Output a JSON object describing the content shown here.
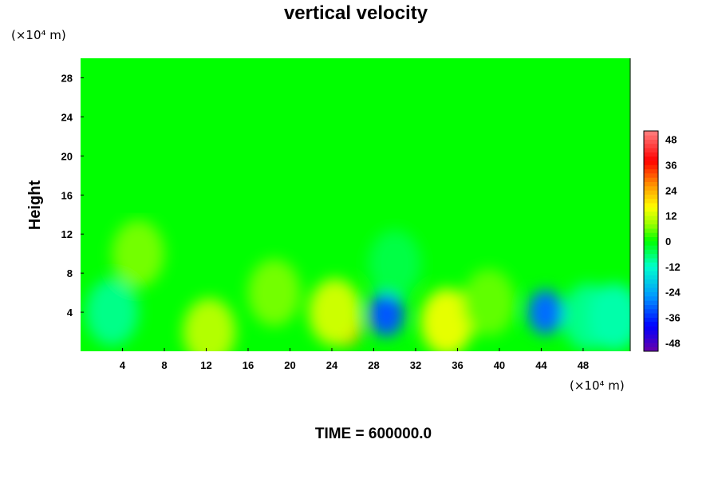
{
  "chart_data": {
    "type": "heatmap",
    "title": "vertical velocity",
    "ylabel": "Height",
    "xlabel": "",
    "x_unit": "(×10⁴ m)",
    "y_unit": "(×10⁴ m)",
    "xlim": [
      0,
      52.5
    ],
    "ylim": [
      0,
      30
    ],
    "x_ticks": [
      4,
      8,
      12,
      16,
      20,
      24,
      28,
      32,
      36,
      40,
      44,
      48
    ],
    "y_ticks": [
      4,
      8,
      12,
      16,
      20,
      24,
      28
    ],
    "x_tick_labels": [
      "4",
      "8",
      "12",
      "16",
      "20",
      "24",
      "28",
      "32",
      "36",
      "40",
      "44",
      "48"
    ],
    "y_tick_labels": [
      "4",
      "8",
      "12",
      "16",
      "20",
      "24",
      "28"
    ],
    "colorbar": {
      "range": [
        -52,
        52
      ],
      "tick_values": [
        48,
        36,
        24,
        12,
        0,
        -12,
        -24,
        -36,
        -48
      ],
      "tick_labels": [
        "48",
        "36",
        "24",
        "12",
        "0",
        "-12",
        "-24",
        "-36",
        "-48"
      ],
      "colors": {
        "-52": "#6a00a8",
        "-40": "#0000ff",
        "-26": "#0099ff",
        "-12": "#00ffcc",
        "0": "#00ff00",
        "8": "#99ff00",
        "16": "#ffff00",
        "26": "#ff9900",
        "38": "#ff0000",
        "52": "#ff8080"
      }
    },
    "features": [
      {
        "x": 25.2,
        "y": 2.8,
        "value": 26
      },
      {
        "x": 24.3,
        "y": 4.0,
        "value": 12
      },
      {
        "x": 29.2,
        "y": 3.8,
        "value": -32
      },
      {
        "x": 44.4,
        "y": 4.0,
        "value": -30
      },
      {
        "x": 35.0,
        "y": 3.0,
        "value": 14
      },
      {
        "x": 12.3,
        "y": 2.0,
        "value": 10
      },
      {
        "x": 3.0,
        "y": 4.0,
        "value": -8
      },
      {
        "x": 18.5,
        "y": 6.0,
        "value": 6
      },
      {
        "x": 39.0,
        "y": 5.0,
        "value": 5
      },
      {
        "x": 48.5,
        "y": 3.5,
        "value": -8
      },
      {
        "x": 51.0,
        "y": 3.5,
        "value": -10
      },
      {
        "x": 5.5,
        "y": 10.0,
        "value": 6
      },
      {
        "x": 30.0,
        "y": 9.0,
        "value": -4
      }
    ],
    "footer": "TIME = 600000.0"
  }
}
